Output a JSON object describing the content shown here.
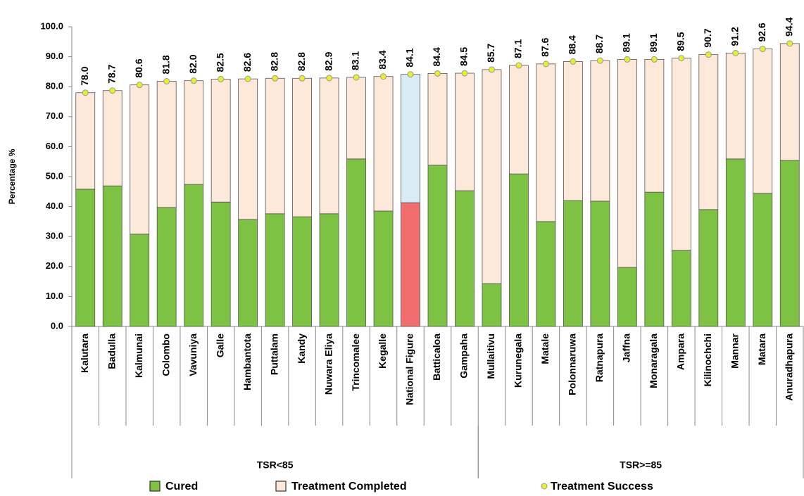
{
  "chart_data": {
    "type": "stacked_bar",
    "y_label": "Percentage %",
    "categories": [
      "Kalutara",
      "Badulla",
      "Kalmunai",
      "Colombo",
      "Vavuniya",
      "Galle",
      "Hambantota",
      "Puttalam",
      "Kandy",
      "Nuwara Eliya",
      "Trincomalee",
      "Kegalle",
      "National Figure",
      "Batticaloa",
      "Gampaha",
      "Mullaitivu",
      "Kurunegala",
      "Matale",
      "Polonnaruwa",
      "Ratnapura",
      "Jaffna",
      "Monaragala",
      "Ampara",
      "Kilinochchi",
      "Mannar",
      "Matara",
      "Anuradhapura"
    ],
    "groups": [
      {
        "label": "TSR<85",
        "count": 15
      },
      {
        "label": "TSR>=85",
        "count": 12
      }
    ],
    "highlight_category": "National Figure",
    "series": [
      {
        "name": "Cured",
        "color": "#7dc242",
        "highlight_color": "#f26d6d",
        "values": [
          45.8,
          46.9,
          30.8,
          39.7,
          47.4,
          41.5,
          35.7,
          37.6,
          36.6,
          37.6,
          55.9,
          38.5,
          41.3,
          53.8,
          45.3,
          14.3,
          50.9,
          35.0,
          42.0,
          41.8,
          19.7,
          44.8,
          25.4,
          39.0,
          55.9,
          44.4,
          55.4
        ]
      },
      {
        "name": "Treatment Completed",
        "color": "#fde9d9",
        "highlight_color": "#d9ebf5",
        "values": [
          32.2,
          31.8,
          49.8,
          42.1,
          34.6,
          41.0,
          46.9,
          45.2,
          46.2,
          45.3,
          27.2,
          44.9,
          42.8,
          30.6,
          39.2,
          71.4,
          36.2,
          52.6,
          46.4,
          46.9,
          69.4,
          44.3,
          64.1,
          51.7,
          35.3,
          48.2,
          39.0
        ]
      },
      {
        "name": "Treatment Success",
        "color": "#e8f02c",
        "kind": "point",
        "values": [
          78.0,
          78.7,
          80.6,
          81.8,
          82.0,
          82.5,
          82.6,
          82.8,
          82.8,
          82.9,
          83.1,
          83.4,
          84.1,
          84.4,
          84.5,
          85.7,
          87.1,
          87.6,
          88.4,
          88.7,
          89.1,
          89.1,
          89.5,
          90.7,
          91.2,
          92.6,
          94.4
        ],
        "value_labels": [
          "78.0",
          "78.7",
          "80.6",
          "81.8",
          "82.0",
          "82.5",
          "82.6",
          "82.8",
          "82.8",
          "82.9",
          "83.1",
          "83.4",
          "84.1",
          "84.4",
          "84.5",
          "85.7",
          "87.1",
          "87.6",
          "88.4",
          "88.7",
          "89.1",
          "89.1",
          "89.5",
          "90.7",
          "91.2",
          "92.6",
          "94.4"
        ]
      }
    ],
    "ylim": [
      0,
      100
    ],
    "yticks": [
      {
        "value": 0,
        "label": "0.0"
      },
      {
        "value": 10,
        "label": "10.0"
      },
      {
        "value": 20,
        "label": "20.0"
      },
      {
        "value": 30,
        "label": "30.0"
      },
      {
        "value": 40,
        "label": "40.0"
      },
      {
        "value": 50,
        "label": "50.0"
      },
      {
        "value": 60,
        "label": "60.0"
      },
      {
        "value": 70,
        "label": "70.0"
      },
      {
        "value": 80,
        "label": "80.0"
      },
      {
        "value": 90,
        "label": "90.0"
      },
      {
        "value": 100,
        "label": "100.0"
      }
    ],
    "grid": false
  }
}
